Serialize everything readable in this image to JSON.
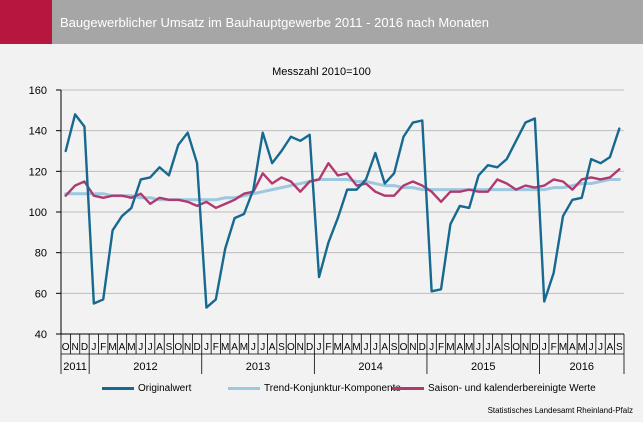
{
  "header": {
    "title": "Baugewerblicher Umsatz im Bauhauptgewerbe 2011 - 2016 nach Monaten",
    "accent_color": "#b5173e",
    "bar_color": "#a6a6a6"
  },
  "subtitle": "Messzahl 2010=100",
  "source": "Statistisches Landesamt Rheinland-Pfalz",
  "chart_data": {
    "type": "line",
    "title": "Baugewerblicher Umsatz im Bauhauptgewerbe 2011 - 2016 nach Monaten",
    "subtitle": "Messzahl 2010=100",
    "ylim": [
      40,
      160
    ],
    "yticks": [
      40,
      60,
      80,
      100,
      120,
      140,
      160
    ],
    "grid": true,
    "legend_position": "bottom",
    "months": [
      "O",
      "N",
      "D",
      "J",
      "F",
      "M",
      "A",
      "M",
      "J",
      "J",
      "A",
      "S",
      "O",
      "N",
      "D",
      "J",
      "F",
      "M",
      "A",
      "M",
      "J",
      "J",
      "A",
      "S",
      "O",
      "N",
      "D",
      "J",
      "F",
      "M",
      "A",
      "M",
      "J",
      "J",
      "A",
      "S",
      "O",
      "N",
      "D",
      "J",
      "F",
      "M",
      "A",
      "M",
      "J",
      "J",
      "A",
      "S",
      "O",
      "N",
      "D",
      "J",
      "F",
      "M",
      "A",
      "M",
      "J",
      "J",
      "A",
      "S"
    ],
    "years": [
      {
        "label": "2011",
        "start": 0,
        "count": 3
      },
      {
        "label": "2012",
        "start": 3,
        "count": 12
      },
      {
        "label": "2013",
        "start": 15,
        "count": 12
      },
      {
        "label": "2014",
        "start": 27,
        "count": 12
      },
      {
        "label": "2015",
        "start": 39,
        "count": 12
      },
      {
        "label": "2016",
        "start": 51,
        "count": 9
      }
    ],
    "series": [
      {
        "name": "Originalwert",
        "color": "#17698f",
        "values": [
          130,
          148,
          142,
          55,
          57,
          91,
          98,
          102,
          116,
          117,
          122,
          118,
          133,
          139,
          124,
          53,
          57,
          82,
          97,
          99,
          111,
          139,
          124,
          130,
          137,
          135,
          138,
          68,
          85,
          97,
          111,
          111,
          116,
          129,
          114,
          119,
          137,
          144,
          145,
          61,
          62,
          94,
          103,
          102,
          118,
          123,
          122,
          126,
          135,
          144,
          146,
          56,
          70,
          98,
          106,
          107,
          126,
          124,
          127,
          141
        ]
      },
      {
        "name": "Trend-Konjunktur-Komponente",
        "color": "#9dc8e0",
        "values": [
          109,
          109,
          109,
          109,
          109,
          108,
          108,
          108,
          107,
          107,
          106,
          106,
          106,
          106,
          106,
          106,
          106,
          107,
          107,
          108,
          109,
          110,
          111,
          112,
          113,
          114,
          115,
          116,
          116,
          116,
          116,
          115,
          115,
          114,
          113,
          113,
          112,
          112,
          111,
          111,
          111,
          111,
          111,
          111,
          111,
          111,
          111,
          111,
          111,
          111,
          111,
          111,
          112,
          112,
          113,
          114,
          114,
          115,
          116,
          116
        ]
      },
      {
        "name": "Saison- und kalenderbereinigte Werte",
        "color": "#b03a70",
        "values": [
          108,
          113,
          115,
          108,
          107,
          108,
          108,
          107,
          109,
          104,
          107,
          106,
          106,
          105,
          103,
          105,
          102,
          104,
          106,
          109,
          110,
          119,
          114,
          117,
          115,
          110,
          115,
          116,
          124,
          118,
          119,
          113,
          114,
          110,
          108,
          108,
          113,
          115,
          113,
          110,
          105,
          110,
          110,
          111,
          110,
          110,
          116,
          114,
          111,
          113,
          112,
          113,
          116,
          115,
          111,
          116,
          117,
          116,
          117,
          121
        ]
      }
    ]
  }
}
